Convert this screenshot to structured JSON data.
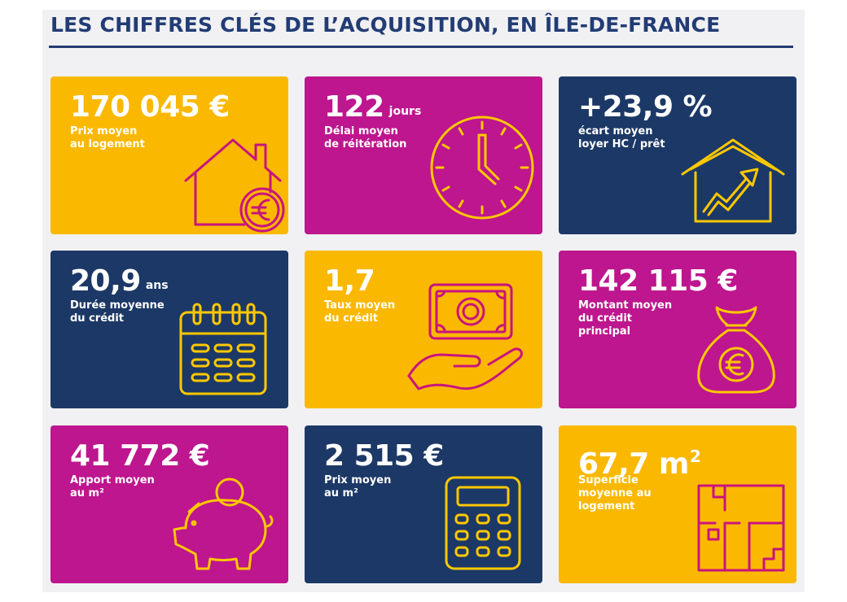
{
  "title": "LES CHIFFRES CLÉS DE L’ACQUISITION, EN ÎLE-DE-FRANCE",
  "colors": {
    "yellow": "#fbb800",
    "magenta": "#bd168e",
    "navy": "#1c3866",
    "title": "#223c75"
  },
  "tiles": [
    {
      "value": "170 045 €",
      "unit": "",
      "label": "Prix moyen\nau logement",
      "icon": "house-euro-icon"
    },
    {
      "value": "122",
      "unit": "jours",
      "label": "Délai moyen\nde réitération",
      "icon": "clock-icon"
    },
    {
      "value": "+23,9 %",
      "unit": "",
      "label": "écart moyen\nloyer HC / prêt",
      "icon": "house-growth-icon"
    },
    {
      "value": "20,9",
      "unit": "ans",
      "label": "Durée moyenne\ndu crédit",
      "icon": "calendar-icon"
    },
    {
      "value": "1,7",
      "unit": "",
      "label": "Taux moyen\ndu crédit",
      "icon": "hand-banknote-icon"
    },
    {
      "value": "142 115 €",
      "unit": "",
      "label": "Montant moyen\ndu crédit principal",
      "icon": "money-bag-icon"
    },
    {
      "value": "41 772 €",
      "unit": "",
      "label": "Apport moyen\nau m²",
      "icon": "piggy-bank-icon"
    },
    {
      "value": "2 515 €",
      "unit": "",
      "label": "Prix moyen\nau m²",
      "icon": "calculator-icon"
    },
    {
      "value": "67,7 m",
      "unit": "2",
      "label": "Superficie\nmoyenne au\nlogement",
      "icon": "floor-plan-icon"
    }
  ]
}
